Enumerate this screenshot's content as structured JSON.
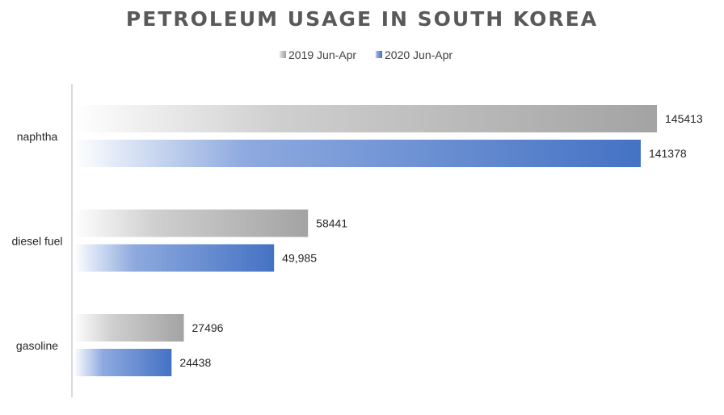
{
  "chart_data": {
    "type": "bar",
    "orientation": "horizontal",
    "title": "PETROLEUM USAGE IN SOUTH KOREA",
    "categories": [
      "naphtha",
      "diesel fuel",
      "gasoline"
    ],
    "series": [
      {
        "name": "2019 Jun-Apr",
        "values": [
          145413,
          58441,
          27496
        ],
        "labels": [
          "145413",
          "58441",
          "27496"
        ],
        "color": "#A6A6A6"
      },
      {
        "name": "2020 Jun-Apr",
        "values": [
          141378,
          49985,
          24438
        ],
        "labels": [
          "141378",
          "49,985",
          "24438"
        ],
        "color": "#4472C4"
      }
    ],
    "xlim": [
      0,
      160000
    ],
    "legend_position": "top",
    "grid": false
  }
}
